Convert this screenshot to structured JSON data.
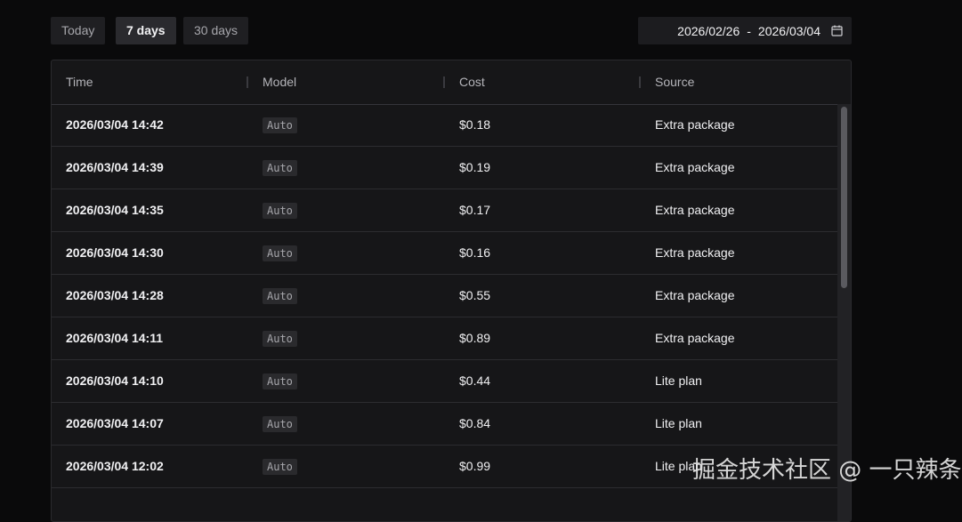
{
  "filters": [
    {
      "label": "Today",
      "active": false
    },
    {
      "label": "7 days",
      "active": true
    },
    {
      "label": "30 days",
      "active": false
    }
  ],
  "date_range": {
    "start": "2026/02/26",
    "separator": "-",
    "end": "2026/03/04",
    "icon": "calendar-icon"
  },
  "table": {
    "columns": [
      "Time",
      "Model",
      "Cost",
      "Source"
    ],
    "rows": [
      {
        "time": "2026/03/04 14:42",
        "model": "Auto",
        "cost": "$0.18",
        "source": "Extra package"
      },
      {
        "time": "2026/03/04 14:39",
        "model": "Auto",
        "cost": "$0.19",
        "source": "Extra package"
      },
      {
        "time": "2026/03/04 14:35",
        "model": "Auto",
        "cost": "$0.17",
        "source": "Extra package"
      },
      {
        "time": "2026/03/04 14:30",
        "model": "Auto",
        "cost": "$0.16",
        "source": "Extra package"
      },
      {
        "time": "2026/03/04 14:28",
        "model": "Auto",
        "cost": "$0.55",
        "source": "Extra package"
      },
      {
        "time": "2026/03/04 14:11",
        "model": "Auto",
        "cost": "$0.89",
        "source": "Extra package"
      },
      {
        "time": "2026/03/04 14:10",
        "model": "Auto",
        "cost": "$0.44",
        "source": "Lite plan"
      },
      {
        "time": "2026/03/04 14:07",
        "model": "Auto",
        "cost": "$0.84",
        "source": "Lite plan"
      },
      {
        "time": "2026/03/04 12:02",
        "model": "Auto",
        "cost": "$0.99",
        "source": "Lite plan"
      }
    ]
  },
  "watermark": "掘金技术社区 @ 一只辣条"
}
